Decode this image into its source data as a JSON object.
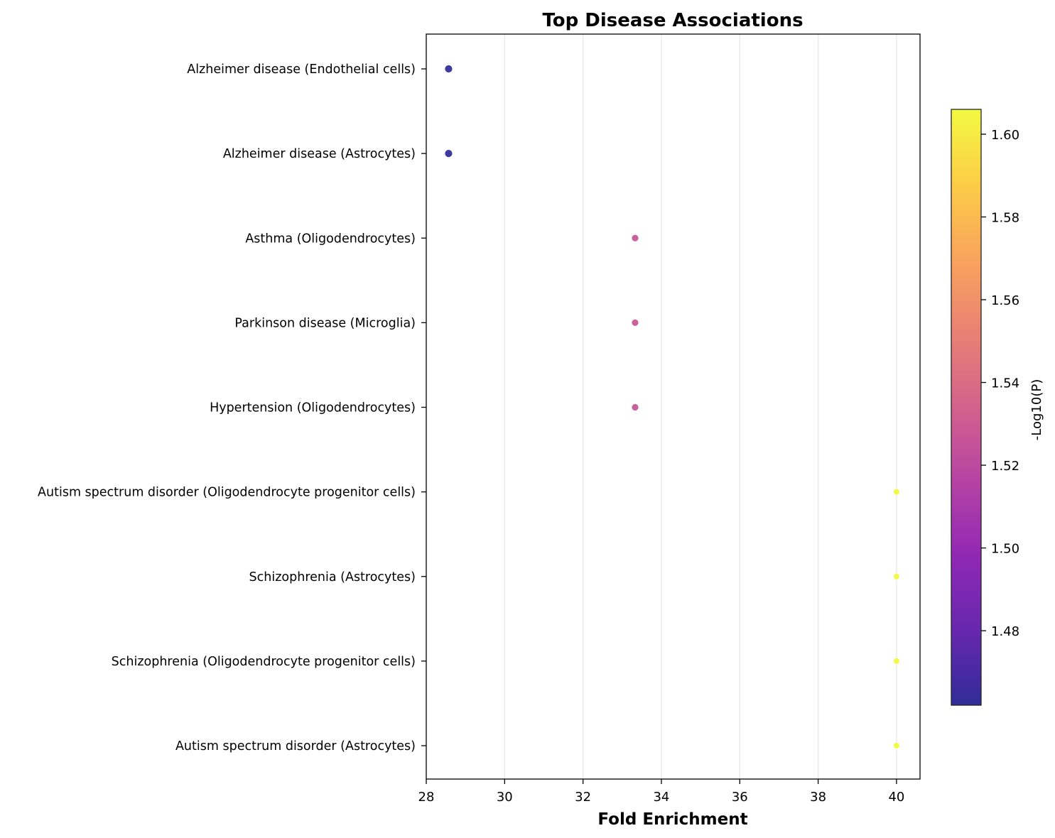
{
  "chart_data": {
    "type": "scatter",
    "title": "Top Disease Associations",
    "xlabel": "Fold Enrichment",
    "ylabel": "",
    "xlim": [
      28,
      40.6
    ],
    "xticks": [
      28,
      30,
      32,
      34,
      36,
      38,
      40
    ],
    "grid": "vertical",
    "categories": [
      "Alzheimer disease (Endothelial cells)",
      "Alzheimer disease (Astrocytes)",
      "Asthma (Oligodendrocytes)",
      "Parkinson disease (Microglia)",
      "Hypertension (Oligodendrocytes)",
      "Autism spectrum disorder (Oligodendrocyte progenitor cells)",
      "Schizophrenia (Astrocytes)",
      "Schizophrenia (Oligodendrocyte progenitor cells)",
      "Autism spectrum disorder (Astrocytes)"
    ],
    "fold_enrichment": [
      28.57,
      28.57,
      33.33,
      33.33,
      33.33,
      40.0,
      40.0,
      40.0,
      40.0
    ],
    "neg_log10_p": [
      1.462,
      1.462,
      1.527,
      1.527,
      1.527,
      1.606,
      1.606,
      1.606,
      1.606
    ],
    "marker_size_rank": [
      2,
      2,
      1,
      1,
      1,
      0,
      0,
      0,
      0
    ],
    "colorbar": {
      "label": "-Log10(P)",
      "colormap": "plasma",
      "range": [
        1.462,
        1.606
      ],
      "ticks": [
        "1.48",
        "1.50",
        "1.52",
        "1.54",
        "1.56",
        "1.58",
        "1.60"
      ],
      "position": "right"
    }
  }
}
